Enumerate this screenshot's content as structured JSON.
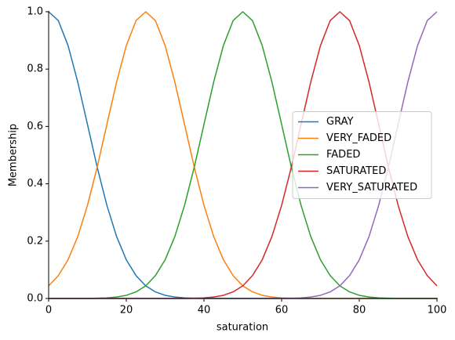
{
  "chart_data": {
    "type": "line",
    "xlabel": "saturation",
    "ylabel": "Membership",
    "x": [
      0,
      2.5,
      5,
      7.5,
      10,
      12.5,
      15,
      17.5,
      20,
      22.5,
      25,
      27.5,
      30,
      32.5,
      35,
      37.5,
      40,
      42.5,
      45,
      47.5,
      50,
      52.5,
      55,
      57.5,
      60,
      62.5,
      65,
      67.5,
      70,
      72.5,
      75,
      77.5,
      80,
      82.5,
      85,
      87.5,
      90,
      92.5,
      95,
      97.5,
      100
    ],
    "series": [
      {
        "name": "GRAY",
        "color": "#1f77b4",
        "values": [
          1,
          0.969,
          0.882,
          0.755,
          0.607,
          0.458,
          0.325,
          0.216,
          0.135,
          0.08,
          0.044,
          0.023,
          0.011,
          0.005,
          0.002,
          0.001,
          0,
          0,
          0,
          0,
          0,
          0,
          0,
          0,
          0,
          0,
          0,
          0,
          0,
          0,
          0,
          0,
          0,
          0,
          0,
          0,
          0,
          0,
          0,
          0,
          0
        ]
      },
      {
        "name": "VERY_FADED",
        "color": "#ff7f0e",
        "values": [
          0.044,
          0.08,
          0.135,
          0.216,
          0.325,
          0.458,
          0.607,
          0.755,
          0.882,
          0.969,
          1,
          0.969,
          0.882,
          0.755,
          0.607,
          0.458,
          0.325,
          0.216,
          0.135,
          0.08,
          0.044,
          0.023,
          0.011,
          0.005,
          0.002,
          0.001,
          0,
          0,
          0,
          0,
          0,
          0,
          0,
          0,
          0,
          0,
          0,
          0,
          0,
          0,
          0
        ]
      },
      {
        "name": "FADED",
        "color": "#2ca02c",
        "values": [
          0,
          0,
          0,
          0,
          0,
          0.001,
          0.002,
          0.005,
          0.011,
          0.023,
          0.044,
          0.08,
          0.135,
          0.216,
          0.325,
          0.458,
          0.607,
          0.755,
          0.882,
          0.969,
          1,
          0.969,
          0.882,
          0.755,
          0.607,
          0.458,
          0.325,
          0.216,
          0.135,
          0.08,
          0.044,
          0.023,
          0.011,
          0.005,
          0.002,
          0.001,
          0,
          0,
          0,
          0,
          0
        ]
      },
      {
        "name": "SATURATED",
        "color": "#d62728",
        "values": [
          0,
          0,
          0,
          0,
          0,
          0,
          0,
          0,
          0,
          0,
          0,
          0,
          0,
          0,
          0,
          0.001,
          0.002,
          0.005,
          0.011,
          0.023,
          0.044,
          0.08,
          0.135,
          0.216,
          0.325,
          0.458,
          0.607,
          0.755,
          0.882,
          0.969,
          1,
          0.969,
          0.882,
          0.755,
          0.607,
          0.458,
          0.325,
          0.216,
          0.135,
          0.08,
          0.044
        ]
      },
      {
        "name": "VERY_SATURATED",
        "color": "#9467bd",
        "values": [
          0,
          0,
          0,
          0,
          0,
          0,
          0,
          0,
          0,
          0,
          0,
          0,
          0,
          0,
          0,
          0,
          0,
          0,
          0,
          0,
          0,
          0,
          0,
          0,
          0,
          0.001,
          0.002,
          0.005,
          0.011,
          0.023,
          0.044,
          0.08,
          0.135,
          0.216,
          0.325,
          0.458,
          0.607,
          0.755,
          0.882,
          0.969,
          1
        ]
      }
    ],
    "xlim": [
      0,
      100
    ],
    "xticks": [
      0,
      20,
      40,
      60,
      80,
      100
    ],
    "ylim": [
      0,
      1
    ],
    "yticks": [
      {
        "value": 0,
        "label": "0.0"
      },
      {
        "value": 0.2,
        "label": "0.2"
      },
      {
        "value": 0.4,
        "label": "0.4"
      },
      {
        "value": 0.6,
        "label": "0.6"
      },
      {
        "value": 0.8,
        "label": "0.8"
      },
      {
        "value": 1,
        "label": "1.0"
      }
    ],
    "legend": "center right"
  }
}
